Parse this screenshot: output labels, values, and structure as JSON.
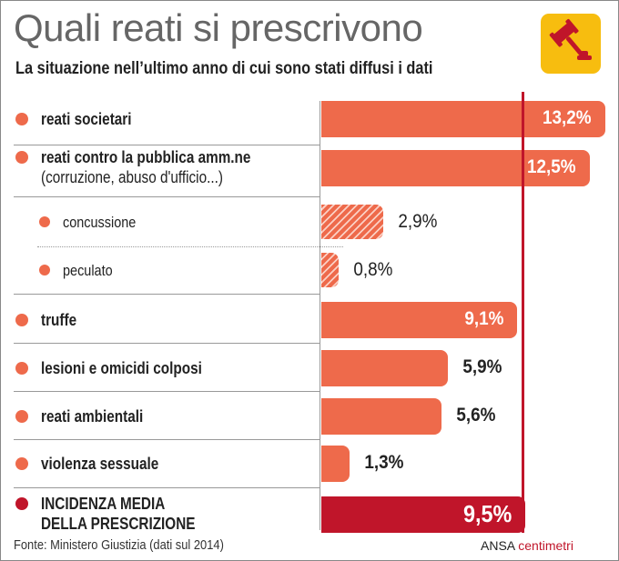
{
  "chart_data": {
    "type": "bar",
    "orientation": "horizontal",
    "title": "Quali reati si prescrivono",
    "subtitle": "La situazione nell’ultimo anno di cui sono stati diffusi i dati",
    "unit": "%",
    "rows": [
      {
        "label": "reati societari",
        "value": 13.2,
        "display": "13,2%",
        "kind": "main"
      },
      {
        "label": "reati contro la pubblica amm.ne",
        "label2": "(corruzione, abuso d'ufficio...)",
        "value": 12.5,
        "display": "12,5%",
        "kind": "main"
      },
      {
        "label": "concussione",
        "value": 2.9,
        "display": "2,9%",
        "kind": "sub"
      },
      {
        "label": "peculato",
        "value": 0.8,
        "display": "0,8%",
        "kind": "sub"
      },
      {
        "label": "truffe",
        "value": 9.1,
        "display": "9,1%",
        "kind": "main"
      },
      {
        "label": "lesioni e omicidi colposi",
        "value": 5.9,
        "display": "5,9%",
        "kind": "main"
      },
      {
        "label": "reati ambientali",
        "value": 5.6,
        "display": "5,6%",
        "kind": "main"
      },
      {
        "label": "violenza sessuale",
        "value": 1.3,
        "display": "1,3%",
        "kind": "main"
      },
      {
        "label": "INCIDENZA MEDIA",
        "label2": "DELLA PRESCRIZIONE",
        "value": 9.5,
        "display": "9,5%",
        "kind": "avg"
      }
    ],
    "reference_line": 9.5
  },
  "colors": {
    "bar": "#ee6a4b",
    "avg": "#c0152a",
    "badge": "#f7bd0f"
  },
  "icon": "gavel-icon",
  "source": "Fonte: Ministero Giustizia (dati sul 2014)",
  "credit": {
    "agency": "ANSA",
    "brand": "centimetri"
  }
}
